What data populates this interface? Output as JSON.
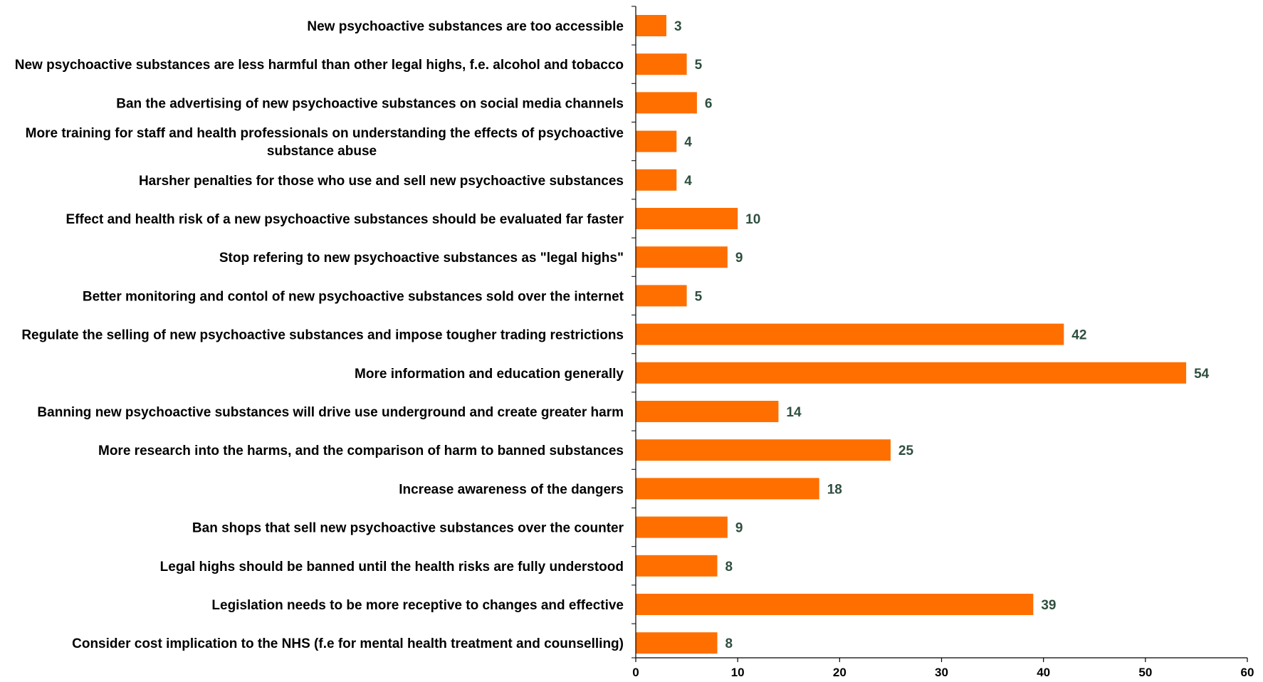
{
  "chart_data": {
    "type": "bar",
    "orientation": "horizontal",
    "title": "",
    "xlabel": "",
    "ylabel": "",
    "xlim": [
      0,
      60
    ],
    "x_ticks": [
      0,
      10,
      20,
      30,
      40,
      50,
      60
    ],
    "grid": false,
    "legend": "none",
    "bar_color": "#FF6F00",
    "label_color": "#2F4F3F",
    "categories": [
      [
        "New psychoactive substances are too accessible"
      ],
      [
        "New psychoactive substances are less harmful than other legal highs, f.e. alcohol and tobacco"
      ],
      [
        "Ban the advertising of new psychoactive substances on social media channels"
      ],
      [
        "More training for staff and health professionals on understanding the effects of psychoactive",
        "substance abuse"
      ],
      [
        "Harsher penalties for those who use and sell new psychoactive substances"
      ],
      [
        "Effect and health risk of a new psychoactive substances should be evaluated far faster"
      ],
      [
        "Stop refering to new psychoactive substances as \"legal highs\""
      ],
      [
        "Better monitoring and contol of new psychoactive substances sold over the internet"
      ],
      [
        "Regulate the selling of new psychoactive substances and impose tougher trading restrictions"
      ],
      [
        "More information and education generally"
      ],
      [
        "Banning new psychoactive substances will drive use underground and create greater harm"
      ],
      [
        "More research into the harms, and the comparison of harm to banned substances"
      ],
      [
        "Increase awareness of the dangers"
      ],
      [
        "Ban shops that sell new psychoactive substances over the counter"
      ],
      [
        "Legal highs should be banned until the health risks are fully understood"
      ],
      [
        "Legislation needs to be more receptive to changes and effective"
      ],
      [
        "Consider cost implication to the NHS (f.e for mental health treatment and counselling)"
      ]
    ],
    "values": [
      3,
      5,
      6,
      4,
      4,
      10,
      9,
      5,
      42,
      54,
      14,
      25,
      18,
      9,
      8,
      39,
      8
    ]
  }
}
